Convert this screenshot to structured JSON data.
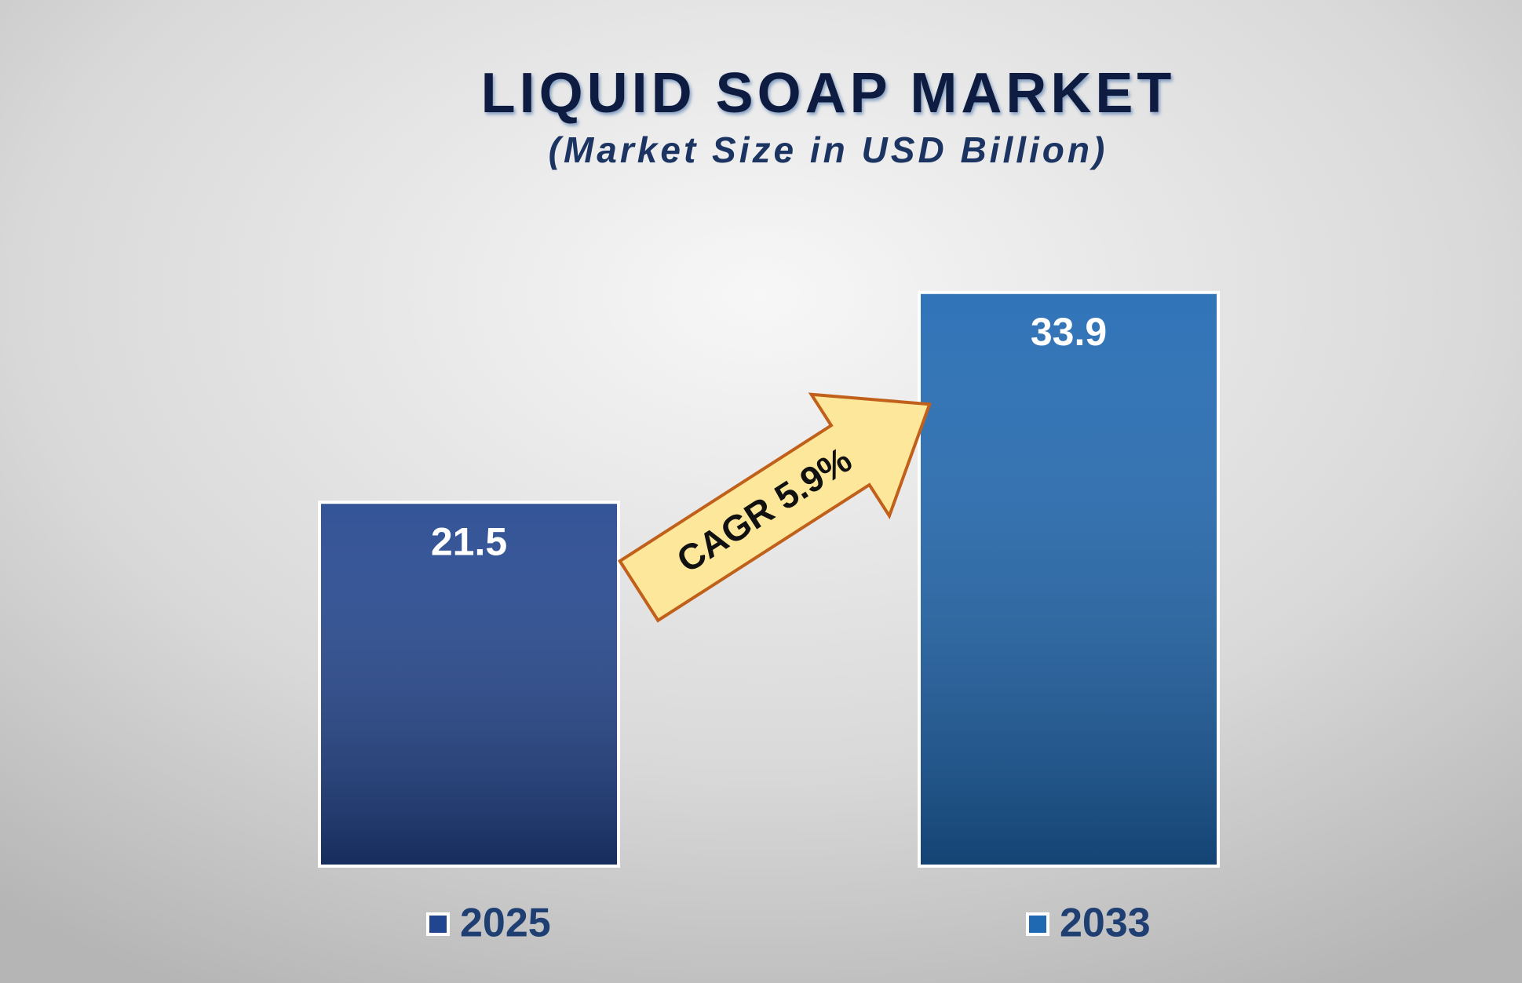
{
  "chart_data": {
    "type": "bar",
    "title": "LIQUID SOAP MARKET",
    "subtitle": "(Market Size in USD Billion)",
    "categories": [
      "2025",
      "2033"
    ],
    "values": [
      21.5,
      33.9
    ],
    "colors": [
      "#22458f",
      "#1f68b2"
    ],
    "annotation": "CAGR 5.9%"
  }
}
